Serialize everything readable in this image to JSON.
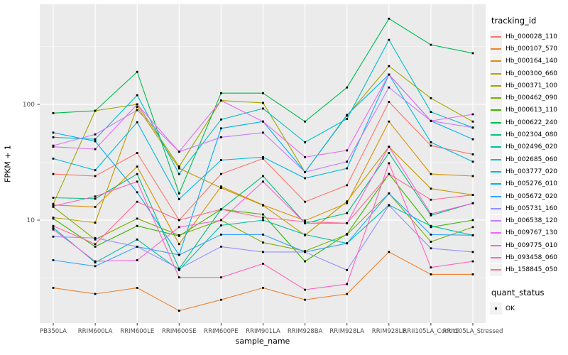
{
  "chart_data": {
    "type": "line",
    "title": "",
    "xlabel": "sample_name",
    "ylabel": "FPKM + 1",
    "y_scale": "log10",
    "y_axis_ticks": [
      10,
      100
    ],
    "y_minor_gridlines": [
      3.162,
      31.623,
      316.228
    ],
    "ylim": [
      1.3,
      730
    ],
    "grid": "on",
    "panel_color": "#EBEBEB",
    "grid_color": "#FFFFFF",
    "tick_label_color": "#4D4D4D",
    "point_shape": "black-square",
    "legend_title": "tracking_id",
    "legend_position": "right",
    "legend2": {
      "title": "quant_status",
      "items": [
        {
          "label": "OK",
          "shape": "black-square"
        }
      ]
    },
    "categories": [
      "PB350LA",
      "RRIM600LA",
      "RRIM600LE",
      "RRIM600SE",
      "RRIM600PE",
      "RRIM901LA",
      "RRIM928BA",
      "RRIM928LA",
      "RRIM928LE",
      "RRII105LA_Control",
      "RRII105LA_Stressed"
    ],
    "series": [
      {
        "name": "Hb_000028_110",
        "color": "#F8766D",
        "values": [
          25,
          24,
          38,
          10,
          25,
          34,
          14.4,
          20,
          105,
          44,
          37
        ]
      },
      {
        "name": "Hb_000107_570",
        "color": "#EA8331",
        "values": [
          2.6,
          2.3,
          2.6,
          1.65,
          2.05,
          2.6,
          2.05,
          2.3,
          5.3,
          3.4,
          3.4
        ]
      },
      {
        "name": "Hb_000164_140",
        "color": "#D89000",
        "values": [
          13.5,
          13,
          29,
          6.2,
          19.5,
          13.5,
          9.9,
          14,
          71,
          25,
          24
        ]
      },
      {
        "name": "Hb_000300_660",
        "color": "#C09B00",
        "values": [
          10.5,
          9.5,
          95,
          28,
          19,
          13.4,
          7.4,
          14.5,
          43,
          18.7,
          16.5
        ]
      },
      {
        "name": "Hb_000371_100",
        "color": "#A3A500",
        "values": [
          13.8,
          88,
          100,
          29,
          108,
          103,
          26,
          80,
          214,
          113,
          71
        ]
      },
      {
        "name": "Hb_000462_090",
        "color": "#7CAE00",
        "values": [
          13,
          6.8,
          10.3,
          7.4,
          10,
          6.4,
          5.4,
          7.5,
          17,
          6.5,
          8.7
        ]
      },
      {
        "name": "Hb_000613_110",
        "color": "#39B600",
        "values": [
          10.3,
          5.9,
          8.9,
          7.3,
          12.4,
          11.2,
          4.4,
          7.6,
          25,
          8.7,
          10
        ]
      },
      {
        "name": "Hb_000622_240",
        "color": "#00BB4E",
        "values": [
          84,
          88,
          191,
          17,
          125,
          125,
          71,
          140,
          550,
          327,
          277
        ]
      },
      {
        "name": "Hb_002304_080",
        "color": "#00BF7D",
        "values": [
          15.6,
          15.3,
          25,
          3.8,
          12.4,
          24,
          9.4,
          11.5,
          38,
          11,
          14
        ]
      },
      {
        "name": "Hb_002496_020",
        "color": "#00C1A3",
        "values": [
          8.6,
          4.3,
          6.8,
          3.7,
          9,
          10,
          7.5,
          6.3,
          13.5,
          8.9,
          7.4
        ]
      },
      {
        "name": "Hb_002685_060",
        "color": "#00BFC4",
        "values": [
          52,
          50,
          120,
          25,
          74,
          92,
          47,
          75,
          361,
          86,
          63
        ]
      },
      {
        "name": "Hb_003777_020",
        "color": "#00BAE0",
        "values": [
          34,
          27,
          70,
          15.2,
          33,
          35,
          23,
          28,
          181,
          47,
          32
        ]
      },
      {
        "name": "Hb_005276_010",
        "color": "#00B0F6",
        "values": [
          57,
          48,
          17.4,
          5,
          62,
          71,
          26,
          81,
          181,
          72,
          50
        ]
      },
      {
        "name": "Hb_005672_020",
        "color": "#35A2FF",
        "values": [
          4.5,
          4,
          5.9,
          5,
          7.5,
          7.5,
          5.3,
          6.3,
          17,
          7.5,
          7.4
        ]
      },
      {
        "name": "Hb_005731_160",
        "color": "#9590FF",
        "values": [
          7.2,
          7,
          5.9,
          3.8,
          5.9,
          5.3,
          5.3,
          3.7,
          13.4,
          5.7,
          5.3
        ]
      },
      {
        "name": "Hb_006538_120",
        "color": "#C77CFF",
        "values": [
          44,
          55,
          89,
          39,
          52,
          57,
          26,
          32,
          140,
          72,
          63
        ]
      },
      {
        "name": "Hb_009767_130",
        "color": "#E76BF3",
        "values": [
          43,
          41,
          100,
          39,
          108,
          71,
          35,
          40,
          181,
          72,
          82
        ]
      },
      {
        "name": "Hb_009775_010",
        "color": "#FA62DB",
        "values": [
          8.3,
          4.4,
          4.5,
          8.7,
          10,
          21.5,
          9.4,
          9.4,
          43,
          11.3,
          14
        ]
      },
      {
        "name": "Hb_093458_060",
        "color": "#FF62BC",
        "values": [
          13.2,
          16,
          21.5,
          3.2,
          3.2,
          4.2,
          2.5,
          2.8,
          31,
          3.9,
          4.4
        ]
      },
      {
        "name": "Hb_158845_050",
        "color": "#FF6A98",
        "values": [
          8.9,
          6.2,
          14.4,
          10,
          12.4,
          10.5,
          9.7,
          9.4,
          25,
          15,
          16.5
        ]
      }
    ]
  }
}
